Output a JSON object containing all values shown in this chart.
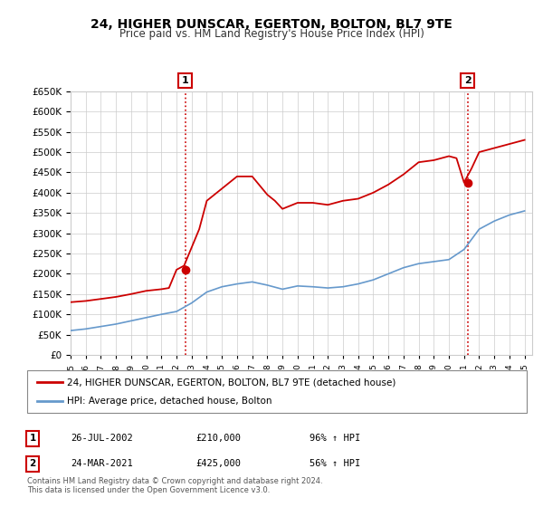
{
  "title": "24, HIGHER DUNSCAR, EGERTON, BOLTON, BL7 9TE",
  "subtitle": "Price paid vs. HM Land Registry's House Price Index (HPI)",
  "legend_line1": "24, HIGHER DUNSCAR, EGERTON, BOLTON, BL7 9TE (detached house)",
  "legend_line2": "HPI: Average price, detached house, Bolton",
  "annotation1_date": "26-JUL-2002",
  "annotation1_price": "£210,000",
  "annotation1_hpi": "96% ↑ HPI",
  "annotation2_date": "24-MAR-2021",
  "annotation2_price": "£425,000",
  "annotation2_hpi": "56% ↑ HPI",
  "footnote": "Contains HM Land Registry data © Crown copyright and database right 2024.\nThis data is licensed under the Open Government Licence v3.0.",
  "red_line_color": "#cc0000",
  "blue_line_color": "#6699cc",
  "vline_color": "#cc0000",
  "vline_style": ":",
  "marker1_x": 2002.57,
  "marker2_x": 2021.23,
  "marker1_y_red": 210000,
  "marker2_y_red": 425000,
  "ylim": [
    0,
    650000
  ],
  "xlim_left": 1995.0,
  "xlim_right": 2025.5,
  "ytick_step": 50000,
  "hpi_years": [
    1995,
    1996,
    1997,
    1998,
    1999,
    2000,
    2001,
    2002,
    2003,
    2004,
    2005,
    2006,
    2007,
    2008,
    2009,
    2010,
    2011,
    2012,
    2013,
    2014,
    2015,
    2016,
    2017,
    2018,
    2019,
    2020,
    2021,
    2022,
    2023,
    2024,
    2025
  ],
  "hpi_values": [
    60000,
    64000,
    70000,
    76000,
    84000,
    92000,
    100000,
    107000,
    128000,
    155000,
    168000,
    175000,
    180000,
    172000,
    162000,
    170000,
    168000,
    165000,
    168000,
    175000,
    185000,
    200000,
    215000,
    225000,
    230000,
    235000,
    260000,
    310000,
    330000,
    345000,
    355000
  ],
  "red_years": [
    1995,
    1996,
    1997,
    1998,
    1999,
    2000,
    2001,
    2001.5,
    2002,
    2002.5,
    2003,
    2003.5,
    2004,
    2005,
    2006,
    2007,
    2008,
    2008.5,
    2009,
    2010,
    2011,
    2012,
    2013,
    2014,
    2015,
    2016,
    2017,
    2018,
    2019,
    2020,
    2020.5,
    2021,
    2021.5,
    2022,
    2023,
    2024,
    2025
  ],
  "red_values": [
    130000,
    133000,
    138000,
    143000,
    150000,
    158000,
    162000,
    165000,
    210000,
    220000,
    265000,
    310000,
    380000,
    410000,
    440000,
    440000,
    395000,
    380000,
    360000,
    375000,
    375000,
    370000,
    380000,
    385000,
    400000,
    420000,
    445000,
    475000,
    480000,
    490000,
    485000,
    425000,
    460000,
    500000,
    510000,
    520000,
    530000
  ]
}
